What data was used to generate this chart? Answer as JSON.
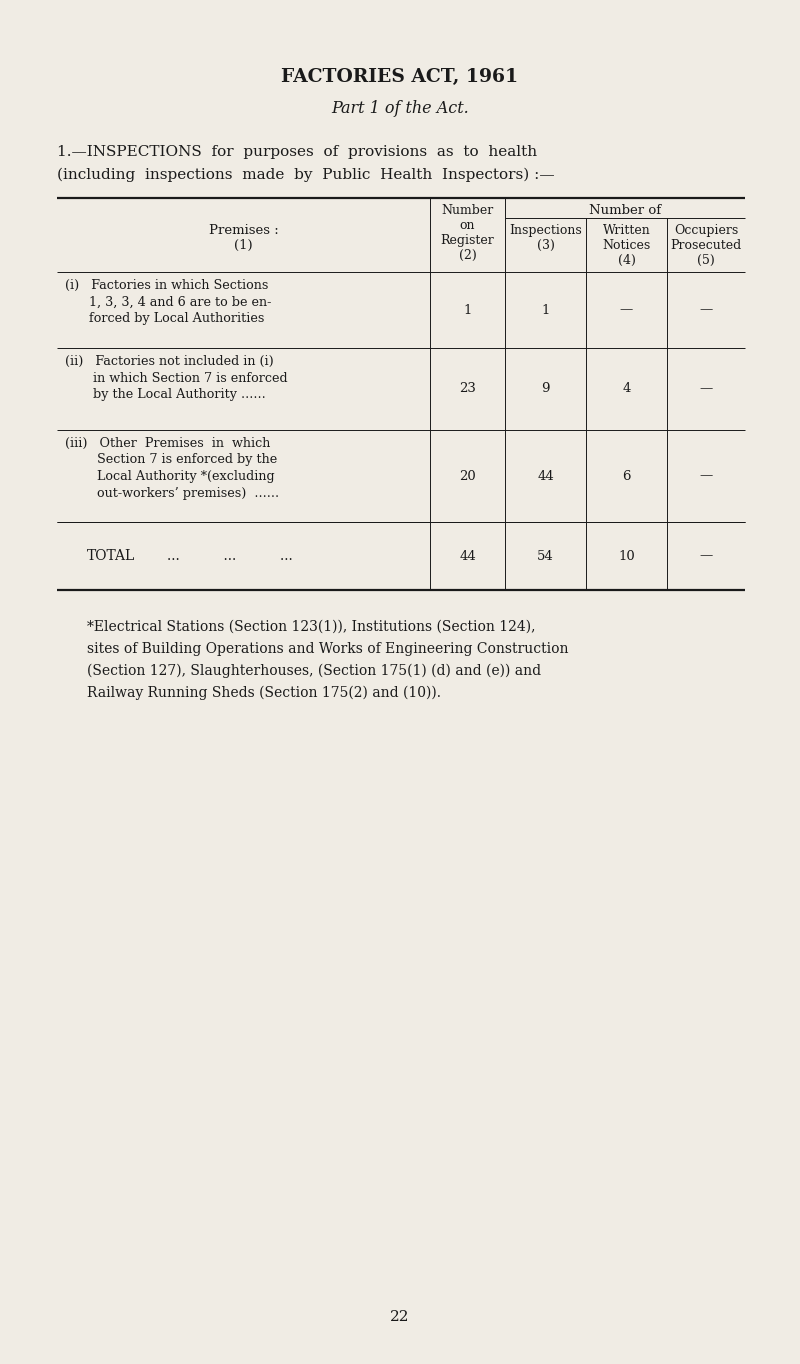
{
  "bg_color": "#f0ece4",
  "text_color": "#1a1a1a",
  "title1": "FACTORIES ACT, 1961",
  "title2": "Part 1 of the Act.",
  "intro_line1": "1.—INSPECTIONS  for  purposes  of  provisions  as  to  health",
  "intro_line2": "(including  inspections  made  by  Public  Health  Inspectors) :—",
  "number_of_header": "Number of",
  "header_premises": "Premises :",
  "header_premises_num": "(1)",
  "header_reg1": "Number",
  "header_reg2": "on",
  "header_reg3": "Register",
  "header_reg4": "(2)",
  "header_insp1": "Inspections",
  "header_insp2": "(3)",
  "header_writ1": "Written",
  "header_writ2": "Notices",
  "header_writ3": "(4)",
  "header_occ1": "Occupiers",
  "header_occ2": "Prosecuted",
  "header_occ3": "(5)",
  "row1_lines": [
    "(i)   Factories in which Sections",
    "      1, 3, 3, 4 and 6 are to be en-",
    "      forced by Local Authorities"
  ],
  "row1_reg": "1",
  "row1_insp": "1",
  "row1_writ": "—",
  "row1_occ": "—",
  "row2_lines": [
    "(ii)   Factories not included in (i)",
    "       in which Section 7 is enforced",
    "       by the Local Authority ......"
  ],
  "row2_reg": "23",
  "row2_insp": "9",
  "row2_writ": "4",
  "row2_occ": "—",
  "row3_lines": [
    "(iii)   Other  Premises  in  which",
    "        Section 7 is enforced by the",
    "        Local Authority *(excluding",
    "        out-workers’ premises)  ......"
  ],
  "row3_reg": "20",
  "row3_insp": "44",
  "row3_writ": "6",
  "row3_occ": "—",
  "total_label1": "TOTAL",
  "total_label2": "...          ...          ...",
  "total_reg": "44",
  "total_insp": "54",
  "total_writ": "10",
  "total_occ": "—",
  "footnote1": "*Electrical Stations (Section 123(1)), Institutions (Section 124),",
  "footnote2": "sites of Building Operations and Works of Engineering Construction",
  "footnote3": "(Section 127), Slaughterhouses, (Section 175(1) (d) and (e)) and",
  "footnote4": "Railway Running Sheds (Section 175(2) and (10)).",
  "page_num": "22",
  "lw_thick": 1.6,
  "lw_thin": 0.7
}
